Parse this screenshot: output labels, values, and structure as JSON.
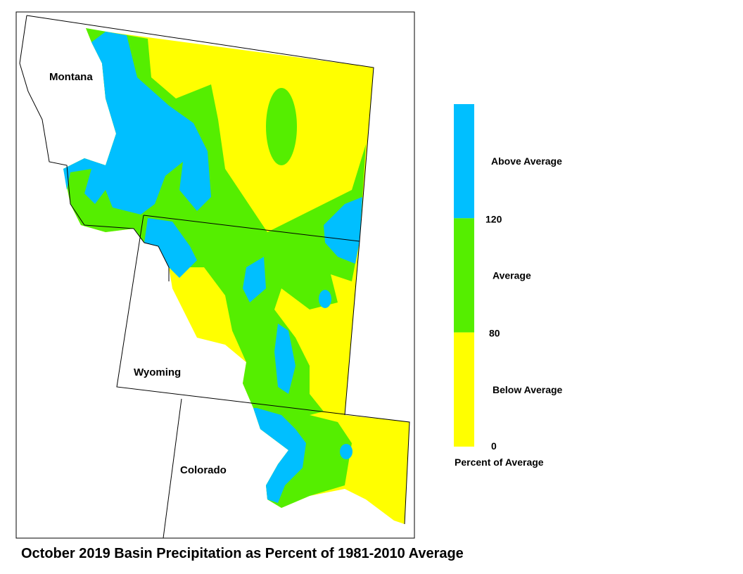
{
  "title": "October 2019 Basin Precipitation as Percent of 1981-2010 Average",
  "states": [
    "Montana",
    "Wyoming",
    "Colorado"
  ],
  "legend": {
    "title": "Percent of Average",
    "classes": [
      {
        "label": "Above Average",
        "color": "#00bfff"
      },
      {
        "label": "Average",
        "color": "#55ee00"
      },
      {
        "label": "Below Average",
        "color": "#ffff00"
      }
    ],
    "breaks": [
      120,
      80,
      0
    ]
  }
}
